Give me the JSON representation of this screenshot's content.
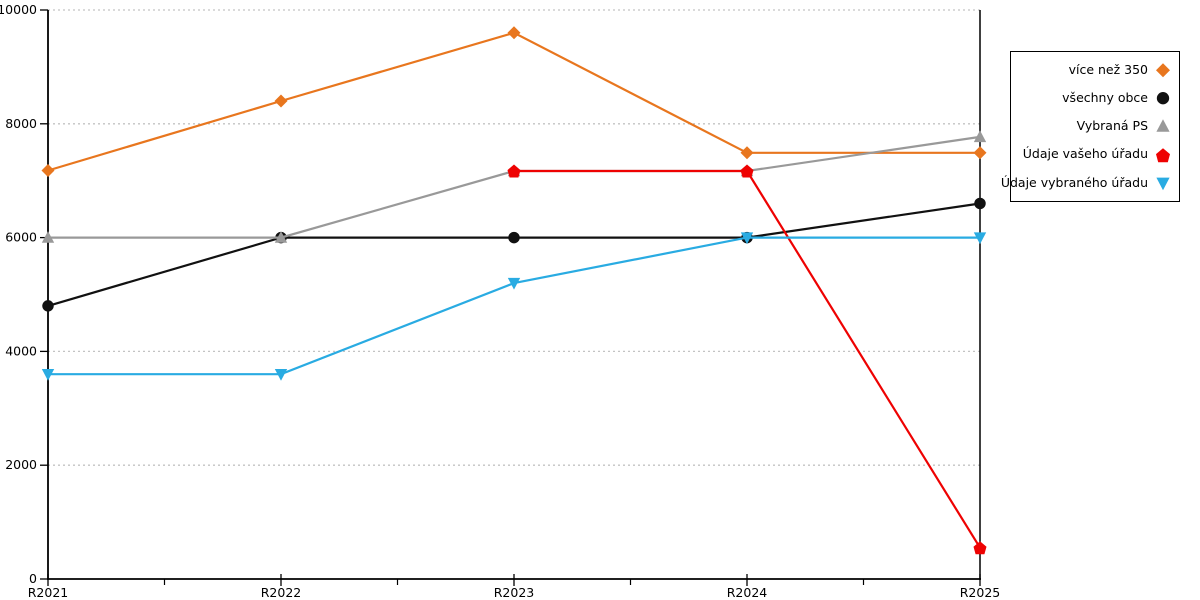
{
  "chart_data": {
    "type": "line",
    "title": "",
    "xlabel": "",
    "ylabel": "",
    "categories": [
      "R2021",
      "R2022",
      "R2023",
      "R2024",
      "R2025"
    ],
    "series": [
      {
        "name": "více než 350",
        "color": "#E8761E",
        "marker": "diamond",
        "values": [
          7180,
          8400,
          9600,
          7490,
          7490
        ]
      },
      {
        "name": "všechny obce",
        "color": "#111111",
        "marker": "circle",
        "values": [
          4800,
          6000,
          6000,
          6000,
          6600
        ]
      },
      {
        "name": "Vybraná PS",
        "color": "#999999",
        "marker": "triangle-up",
        "values": [
          6000,
          6000,
          7170,
          7170,
          7770
        ]
      },
      {
        "name": "Údaje vašeho úřadu",
        "color": "#EE0202",
        "marker": "pentagon",
        "values": [
          null,
          null,
          7170,
          7170,
          550
        ]
      },
      {
        "name": "Údaje vybraného úřadu",
        "color": "#29ABE2",
        "marker": "triangle-down",
        "values": [
          3600,
          3600,
          5200,
          6000,
          6000
        ]
      }
    ],
    "ylim": [
      0,
      10000
    ],
    "yticks": [
      0,
      2000,
      4000,
      6000,
      8000,
      10000
    ],
    "ytick_labels": [
      "0",
      "2000",
      "4000",
      "6000",
      "8000",
      "10000"
    ],
    "x_minor_ticks": "midpoints between category ticks",
    "grid": "horizontal dashed gridlines at yticks",
    "legend_position": "right, boxed, markers to the right of labels"
  },
  "colors": {
    "background": "#FFFFFF",
    "axis": "#000000",
    "grid": "#C3C3C3",
    "legend_border": "#000000"
  }
}
